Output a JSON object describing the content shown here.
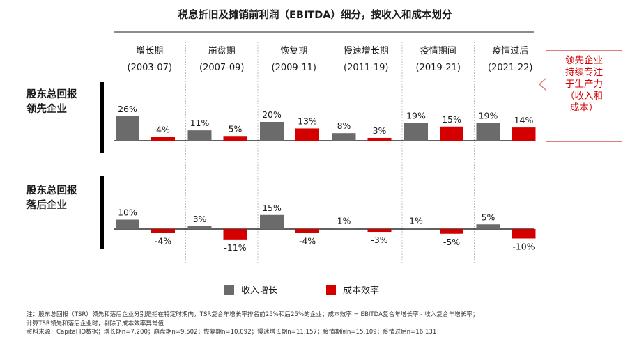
{
  "title": "税息折旧及摊销前利润（EBITDA）细分，按收入和成本划分",
  "rows": [
    {
      "label_line1": "股东总回报",
      "label_line2": "领先企业"
    },
    {
      "label_line1": "股东总回报",
      "label_line2": "落后企业"
    }
  ],
  "callout": {
    "line1": "领先企业",
    "line2": "持续专注",
    "line3": "于生产力",
    "line4": "（收入和",
    "line5": "成本）"
  },
  "legend": {
    "revenue": "收入增长",
    "cost": "成本效率"
  },
  "colors": {
    "revenue": "#6b6b6b",
    "cost": "#d40000",
    "axis": "#000000"
  },
  "footnote": {
    "line1": "注：股东总回报（TSR）领先和落后企业分别是指在特定时期内，TSR复合年增长率排名前25%和后25%的企业；成本效率 = EBITDA复合年增长率 - 收入复合年增长率；",
    "line2": "计算TSR领先和落后企业时，剔除了成本效率异常值",
    "line3": "资料来源：Capital IQ数据；增长期n=7,200；崩盘期n=9,502；恢复期n=10,092；慢速增长期n=11,157；疫情期间n=15,109；疫情过后n=16,131"
  },
  "chart_data": {
    "type": "bar",
    "categories": [
      {
        "name": "增长期",
        "period": "(2003-07)"
      },
      {
        "name": "崩盘期",
        "period": "(2007-09)"
      },
      {
        "name": "恢复期",
        "period": "(2009-11)"
      },
      {
        "name": "慢速增长期",
        "period": "(2011-19)"
      },
      {
        "name": "疫情期间",
        "period": "(2019-21)"
      },
      {
        "name": "疫情过后",
        "period": "(2021-22)"
      }
    ],
    "panels": [
      {
        "group": "股东总回报领先企业",
        "series": [
          {
            "name": "收入增长",
            "values": [
              26,
              11,
              20,
              8,
              19,
              19
            ],
            "labels": [
              "26%",
              "11%",
              "20%",
              "8%",
              "19%",
              "19%"
            ]
          },
          {
            "name": "成本效率",
            "values": [
              4,
              5,
              13,
              3,
              15,
              14
            ],
            "labels": [
              "4%",
              "5%",
              "13%",
              "3%",
              "15%",
              "14%"
            ]
          }
        ]
      },
      {
        "group": "股东总回报落后企业",
        "series": [
          {
            "name": "收入增长",
            "values": [
              10,
              3,
              15,
              1,
              1,
              5
            ],
            "labels": [
              "10%",
              "3%",
              "15%",
              "1%",
              "1%",
              "5%"
            ]
          },
          {
            "name": "成本效率",
            "values": [
              -4,
              -11,
              -4,
              -3,
              -5,
              -10
            ],
            "labels": [
              "-4%",
              "-11%",
              "-4%",
              "-3%",
              "-5%",
              "-10%"
            ]
          }
        ]
      }
    ]
  }
}
